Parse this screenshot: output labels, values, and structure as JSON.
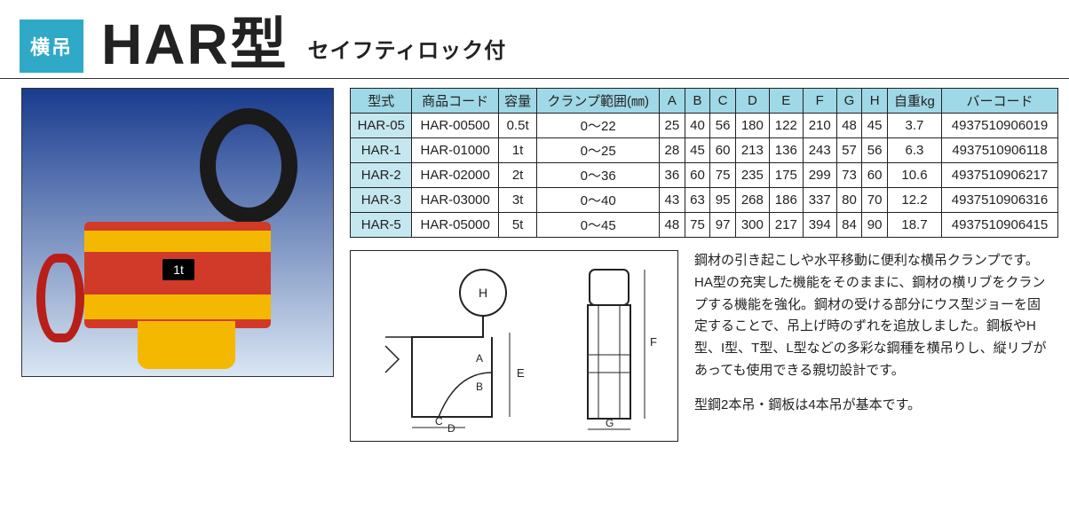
{
  "header": {
    "badge": "横吊",
    "title": "HAR型",
    "subtitle": "セイフティロック付"
  },
  "colors": {
    "badge_bg": "#2fa9c7",
    "table_header_bg": "#9fd8e6",
    "table_col0_bg": "#c5e8f0",
    "photo_bg_from": "#193b8e",
    "photo_bg_to": "#d9e6f3",
    "clamp_body": "#d13a28",
    "clamp_ring": "#1a1a1a",
    "clamp_accent": "#f5b800",
    "clamp_handle": "#b81f18",
    "title_color": "#222222",
    "title_fontsize": 64,
    "subtitle_fontsize": 24
  },
  "table": {
    "columns": [
      "型式",
      "商品コード",
      "容量",
      "クランプ範囲(㎜)",
      "A",
      "B",
      "C",
      "D",
      "E",
      "F",
      "G",
      "H",
      "自重kg",
      "バーコード"
    ],
    "rows": [
      [
        "HAR-05",
        "HAR-00500",
        "0.5t",
        "0～22",
        "25",
        "40",
        "56",
        "180",
        "122",
        "210",
        "48",
        "45",
        "3.7",
        "4937510906019"
      ],
      [
        "HAR-1",
        "HAR-01000",
        "1t",
        "0～25",
        "28",
        "45",
        "60",
        "213",
        "136",
        "243",
        "57",
        "56",
        "6.3",
        "4937510906118"
      ],
      [
        "HAR-2",
        "HAR-02000",
        "2t",
        "0～36",
        "36",
        "60",
        "75",
        "235",
        "175",
        "299",
        "73",
        "60",
        "10.6",
        "4937510906217"
      ],
      [
        "HAR-3",
        "HAR-03000",
        "3t",
        "0～40",
        "43",
        "63",
        "95",
        "268",
        "186",
        "337",
        "80",
        "70",
        "12.2",
        "4937510906316"
      ],
      [
        "HAR-5",
        "HAR-05000",
        "5t",
        "0～45",
        "48",
        "75",
        "97",
        "300",
        "217",
        "394",
        "84",
        "90",
        "18.7",
        "4937510906415"
      ]
    ]
  },
  "photo": {
    "label_text": "1t"
  },
  "diagram": {
    "dim_labels": [
      "H",
      "A",
      "B",
      "E",
      "F",
      "C",
      "D",
      "G"
    ]
  },
  "description": {
    "p1": "鋼材の引き起こしや水平移動に便利な横吊クランプです。HA型の充実した機能をそのままに、鋼材の横リブをクランプする機能を強化。鋼材の受ける部分にウス型ジョーを固定することで、吊上げ時のずれを追放しました。鋼板やH型、I型、T型、L型などの多彩な鋼種を横吊りし、縦リブがあっても使用できる親切設計です。",
    "p2": "型鋼2本吊・鋼板は4本吊が基本です。"
  }
}
